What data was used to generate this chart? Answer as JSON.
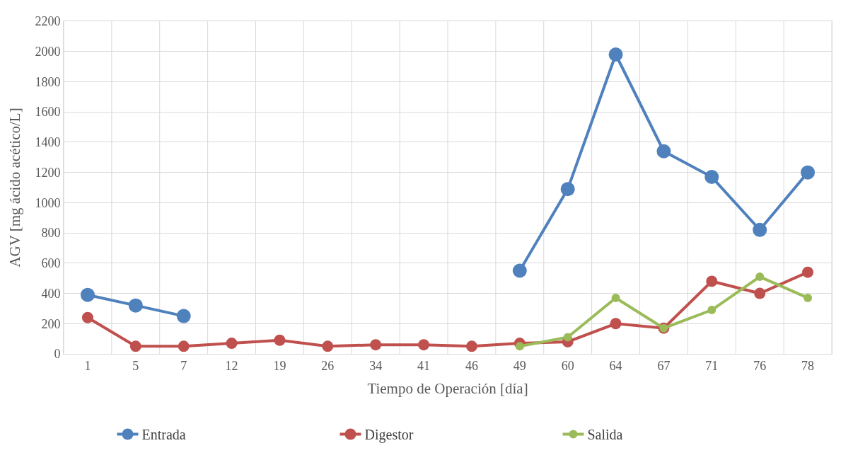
{
  "chart_data": {
    "type": "line",
    "xlabel": "Tiempo de Operación [día]",
    "ylabel": "AGV [mg ácido acético/L]",
    "categories": [
      "1",
      "5",
      "7",
      "12",
      "19",
      "26",
      "34",
      "41",
      "46",
      "49",
      "60",
      "64",
      "67",
      "71",
      "76",
      "78"
    ],
    "series": [
      {
        "name": "Entrada",
        "color": "#4f81bd",
        "values": [
          390,
          320,
          250,
          null,
          null,
          null,
          null,
          null,
          null,
          550,
          1090,
          1980,
          1340,
          1170,
          820,
          1200
        ]
      },
      {
        "name": "Digestor",
        "color": "#c0504d",
        "values": [
          240,
          50,
          50,
          70,
          90,
          50,
          60,
          60,
          50,
          70,
          80,
          200,
          170,
          480,
          400,
          540
        ]
      },
      {
        "name": "Salida",
        "color": "#9bbb59",
        "values": [
          null,
          null,
          null,
          null,
          null,
          null,
          null,
          null,
          null,
          50,
          110,
          370,
          170,
          290,
          510,
          370
        ]
      }
    ],
    "ylim": [
      0,
      2200
    ],
    "yticks": [
      0,
      200,
      400,
      600,
      800,
      1000,
      1200,
      1400,
      1600,
      1800,
      2000,
      2200
    ],
    "grid": true,
    "legend": "bottom",
    "marker": "circle",
    "line_style": "solid"
  }
}
